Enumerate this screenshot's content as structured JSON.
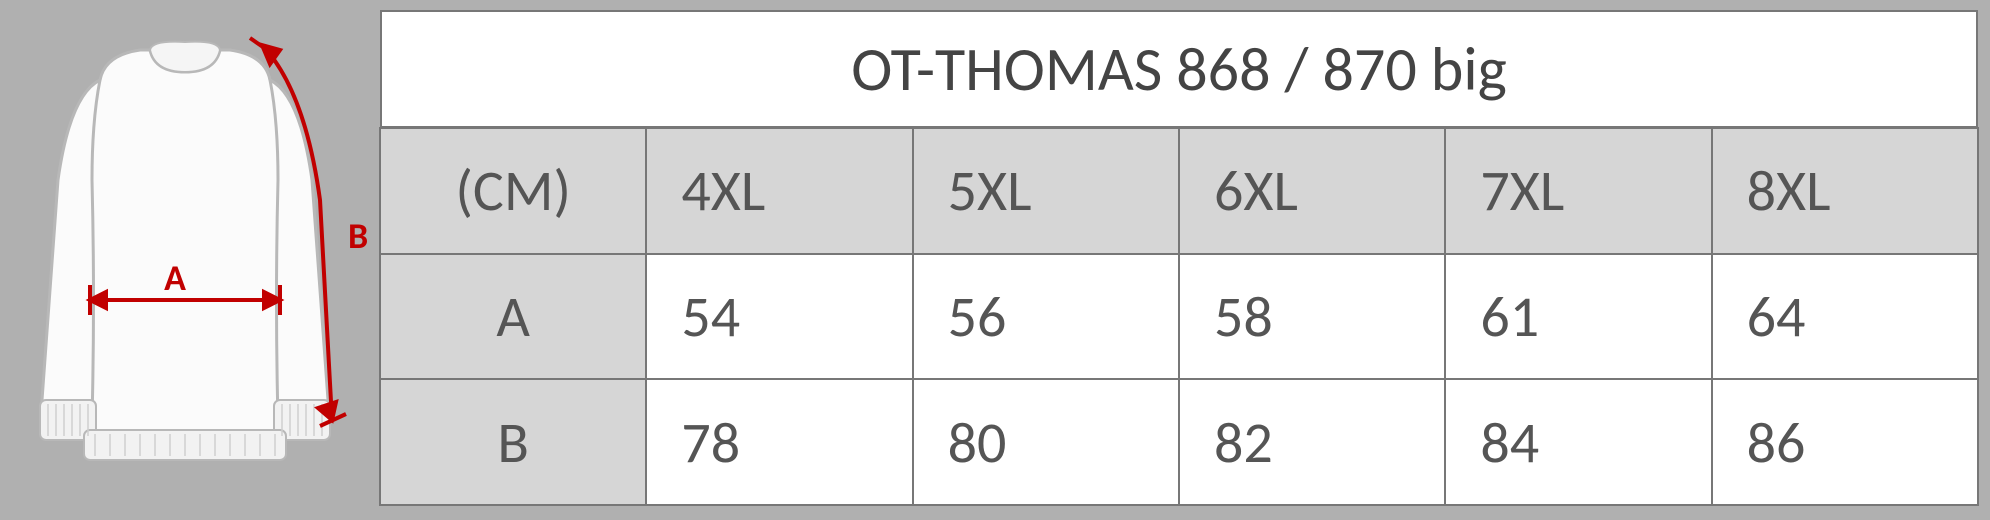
{
  "diagram": {
    "labelA": "A",
    "labelB": "B",
    "measure_color": "#c10000",
    "garment_fill": "#fbfbfb",
    "garment_stroke": "#b8b8b8",
    "background": "#b0b0b0"
  },
  "table": {
    "title": "OT-THOMAS 868 / 870 big",
    "unit_label": "(CM)",
    "columns": [
      "4XL",
      "5XL",
      "6XL",
      "7XL",
      "8XL"
    ],
    "rows": [
      {
        "label": "A",
        "values": [
          "54",
          "56",
          "58",
          "61",
          "64"
        ]
      },
      {
        "label": "B",
        "values": [
          "78",
          "80",
          "82",
          "84",
          "86"
        ]
      }
    ],
    "col_count": 6,
    "row_count": 3,
    "header_bg": "#d6d6d6",
    "data_bg": "#ffffff",
    "border_color": "#777777",
    "title_fontsize": 62,
    "cell_fontsize": 58,
    "text_color": "#555555"
  }
}
